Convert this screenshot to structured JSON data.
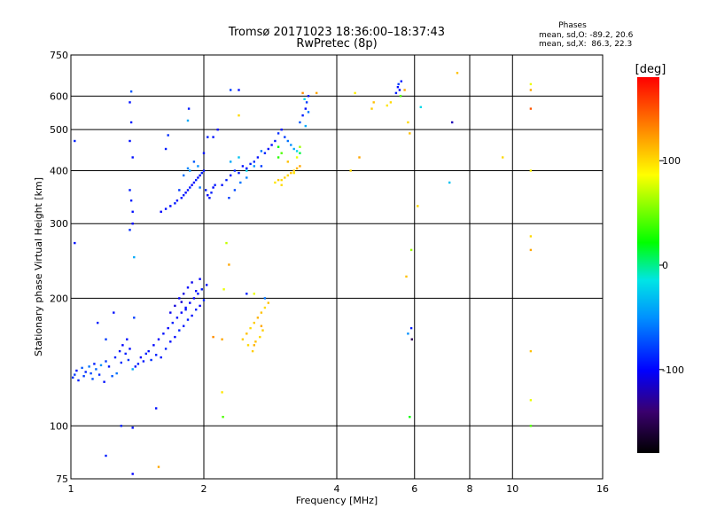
{
  "chart_data": {
    "type": "scatter",
    "title": "Tromsø 20171023 18:36:00–18:37:43",
    "subtitle": "RwPretec (8p)",
    "stats": {
      "heading": "Phases",
      "line_o": "mean, sd,O: -89.2, 20.6",
      "line_x": "mean, sd,X:  86.3, 22.3"
    },
    "xlabel": "Frequency [MHz]",
    "ylabel": "Stationary phase Virtual Height [km]",
    "x_scale": "log",
    "y_scale": "log",
    "xlim": [
      1,
      16
    ],
    "ylim": [
      75,
      750
    ],
    "x_ticks": [
      {
        "v": 1,
        "label": "1"
      },
      {
        "v": 2,
        "label": "2"
      },
      {
        "v": 4,
        "label": "4"
      },
      {
        "v": 6,
        "label": "6"
      },
      {
        "v": 8,
        "label": "8"
      },
      {
        "v": 10,
        "label": "10"
      },
      {
        "v": 16,
        "label": "16"
      }
    ],
    "x_grid": [
      2,
      4,
      6,
      8,
      10
    ],
    "y_ticks": [
      {
        "v": 75,
        "label": "75"
      },
      {
        "v": 100,
        "label": "100"
      },
      {
        "v": 200,
        "label": "200"
      },
      {
        "v": 300,
        "label": "300"
      },
      {
        "v": 400,
        "label": "400"
      },
      {
        "v": 500,
        "label": "500"
      },
      {
        "v": 600,
        "label": "600"
      },
      {
        "v": 750,
        "label": "750"
      }
    ],
    "y_grid": [
      100,
      200,
      300,
      400,
      500,
      600
    ],
    "grid": true,
    "colorbar": {
      "label": "[deg]",
      "range": [
        -180,
        180
      ],
      "ticks": [
        {
          "v": 100,
          "label": "100"
        },
        {
          "v": 0,
          "label": "0"
        },
        {
          "v": -100,
          "label": "-100"
        }
      ]
    },
    "points": [
      [
        1.01,
        130,
        -85
      ],
      [
        1.02,
        132,
        -80
      ],
      [
        1.03,
        135,
        -95
      ],
      [
        1.04,
        128,
        -90
      ],
      [
        1.06,
        137,
        -70
      ],
      [
        1.07,
        131,
        -78
      ],
      [
        1.08,
        134,
        -88
      ],
      [
        1.1,
        138,
        -60
      ],
      [
        1.11,
        133,
        -75
      ],
      [
        1.12,
        129,
        -72
      ],
      [
        1.13,
        140,
        -90
      ],
      [
        1.14,
        136,
        -65
      ],
      [
        1.16,
        132,
        -85
      ],
      [
        1.17,
        139,
        -50
      ],
      [
        1.19,
        127,
        -95
      ],
      [
        1.2,
        142,
        -80
      ],
      [
        1.22,
        138,
        -92
      ],
      [
        1.24,
        131,
        -70
      ],
      [
        1.26,
        145,
        -88
      ],
      [
        1.27,
        133,
        -60
      ],
      [
        1.29,
        150,
        -95
      ],
      [
        1.3,
        141,
        -85
      ],
      [
        1.31,
        155,
        -100
      ],
      [
        1.33,
        148,
        -90
      ],
      [
        1.34,
        160,
        -95
      ],
      [
        1.35,
        143,
        -82
      ],
      [
        1.36,
        152,
        -98
      ],
      [
        1.38,
        136,
        -40
      ],
      [
        1.4,
        138,
        -95
      ],
      [
        1.42,
        140,
        -90
      ],
      [
        1.44,
        145,
        -100
      ],
      [
        1.46,
        142,
        -92
      ],
      [
        1.48,
        148,
        -88
      ],
      [
        1.5,
        150,
        -95
      ],
      [
        1.52,
        143,
        -85
      ],
      [
        1.54,
        155,
        -98
      ],
      [
        1.56,
        147,
        -90
      ],
      [
        1.58,
        160,
        -100
      ],
      [
        1.6,
        145,
        -92
      ],
      [
        1.62,
        165,
        -95
      ],
      [
        1.64,
        152,
        -88
      ],
      [
        1.66,
        170,
        -100
      ],
      [
        1.68,
        158,
        -95
      ],
      [
        1.7,
        175,
        -90
      ],
      [
        1.72,
        162,
        -98
      ],
      [
        1.74,
        180,
        -95
      ],
      [
        1.76,
        168,
        -88
      ],
      [
        1.78,
        185,
        -100
      ],
      [
        1.8,
        172,
        -92
      ],
      [
        1.82,
        190,
        -95
      ],
      [
        1.84,
        178,
        -90
      ],
      [
        1.86,
        195,
        -100
      ],
      [
        1.88,
        182,
        -95
      ],
      [
        1.9,
        200,
        -98
      ],
      [
        1.92,
        188,
        -88
      ],
      [
        1.94,
        205,
        -95
      ],
      [
        1.96,
        192,
        -100
      ],
      [
        1.98,
        210,
        -92
      ],
      [
        2.0,
        198,
        -90
      ],
      [
        2.03,
        215,
        -95
      ],
      [
        1.68,
        185,
        -105
      ],
      [
        1.72,
        192,
        -110
      ],
      [
        1.76,
        200,
        -100
      ],
      [
        1.8,
        205,
        -108
      ],
      [
        1.84,
        212,
        -98
      ],
      [
        1.88,
        218,
        -105
      ],
      [
        1.92,
        208,
        -95
      ],
      [
        1.96,
        222,
        -100
      ],
      [
        1.78,
        196,
        -112
      ],
      [
        1.82,
        188,
        -94
      ],
      [
        1.15,
        175,
        -90
      ],
      [
        1.2,
        160,
        -80
      ],
      [
        1.25,
        185,
        -95
      ],
      [
        1.37,
        340,
        -90
      ],
      [
        1.38,
        320,
        -95
      ],
      [
        1.38,
        300,
        -100
      ],
      [
        1.36,
        290,
        -85
      ],
      [
        1.39,
        250,
        -40
      ],
      [
        1.39,
        180,
        -80
      ],
      [
        1.37,
        615,
        -70
      ],
      [
        1.36,
        580,
        -95
      ],
      [
        1.37,
        520,
        -90
      ],
      [
        1.36,
        470,
        -95
      ],
      [
        1.38,
        430,
        -95
      ],
      [
        1.36,
        360,
        -90
      ],
      [
        1.38,
        99,
        -95
      ],
      [
        1.38,
        77,
        -100
      ],
      [
        1.3,
        100,
        -90
      ],
      [
        1.2,
        85,
        -90
      ],
      [
        1.58,
        80,
        120
      ],
      [
        1.56,
        110,
        -95
      ],
      [
        1.02,
        470,
        -90
      ],
      [
        1.02,
        270,
        -95
      ],
      [
        1.6,
        320,
        -100
      ],
      [
        1.64,
        325,
        -95
      ],
      [
        1.68,
        330,
        -98
      ],
      [
        1.72,
        335,
        -92
      ],
      [
        1.74,
        340,
        -100
      ],
      [
        1.78,
        345,
        -95
      ],
      [
        1.8,
        350,
        -90
      ],
      [
        1.82,
        355,
        -100
      ],
      [
        1.84,
        360,
        -95
      ],
      [
        1.86,
        365,
        -92
      ],
      [
        1.88,
        370,
        -100
      ],
      [
        1.9,
        375,
        -95
      ],
      [
        1.92,
        380,
        -90
      ],
      [
        1.94,
        385,
        -98
      ],
      [
        1.96,
        390,
        -95
      ],
      [
        1.98,
        395,
        -88
      ],
      [
        2.0,
        400,
        -95
      ],
      [
        2.02,
        360,
        -92
      ],
      [
        2.04,
        350,
        -100
      ],
      [
        2.06,
        345,
        -95
      ],
      [
        2.08,
        355,
        -90
      ],
      [
        2.1,
        365,
        -98
      ],
      [
        2.12,
        370,
        -92
      ],
      [
        1.76,
        360,
        -80
      ],
      [
        1.8,
        390,
        -60
      ],
      [
        1.84,
        405,
        -55
      ],
      [
        1.9,
        420,
        -70
      ],
      [
        1.94,
        410,
        -50
      ],
      [
        2.0,
        440,
        -95
      ],
      [
        2.04,
        480,
        -90
      ],
      [
        1.64,
        450,
        -90
      ],
      [
        1.66,
        485,
        -85
      ],
      [
        1.86,
        400,
        -45
      ],
      [
        1.96,
        365,
        -60
      ],
      [
        2.2,
        370,
        -95
      ],
      [
        2.25,
        380,
        -90
      ],
      [
        2.3,
        390,
        -95
      ],
      [
        2.35,
        400,
        -88
      ],
      [
        2.4,
        395,
        -92
      ],
      [
        2.45,
        410,
        -95
      ],
      [
        2.5,
        405,
        -100
      ],
      [
        2.55,
        415,
        -90
      ],
      [
        2.6,
        420,
        -85
      ],
      [
        2.65,
        430,
        -95
      ],
      [
        2.7,
        410,
        -80
      ],
      [
        2.75,
        440,
        -90
      ],
      [
        2.8,
        450,
        -95
      ],
      [
        2.3,
        420,
        -40
      ],
      [
        2.4,
        430,
        -30
      ],
      [
        2.5,
        400,
        -20
      ],
      [
        2.6,
        410,
        -50
      ],
      [
        2.7,
        445,
        -60
      ],
      [
        2.85,
        460,
        -95
      ],
      [
        2.9,
        470,
        -90
      ],
      [
        2.95,
        490,
        -85
      ],
      [
        3.0,
        500,
        -95
      ],
      [
        3.05,
        480,
        -80
      ],
      [
        3.1,
        470,
        -60
      ],
      [
        3.15,
        460,
        -50
      ],
      [
        3.2,
        450,
        -40
      ],
      [
        3.25,
        445,
        -20
      ],
      [
        3.3,
        440,
        10
      ],
      [
        2.95,
        430,
        30
      ],
      [
        3.0,
        440,
        40
      ],
      [
        2.95,
        455,
        20
      ],
      [
        2.9,
        375,
        95
      ],
      [
        3.0,
        380,
        100
      ],
      [
        3.05,
        385,
        105
      ],
      [
        3.1,
        390,
        100
      ],
      [
        3.15,
        395,
        110
      ],
      [
        3.2,
        400,
        105
      ],
      [
        3.25,
        405,
        115
      ],
      [
        3.3,
        410,
        120
      ],
      [
        3.1,
        420,
        110
      ],
      [
        3.2,
        395,
        95
      ],
      [
        3.0,
        370,
        100
      ],
      [
        2.95,
        380,
        105
      ],
      [
        3.3,
        520,
        -70
      ],
      [
        3.35,
        540,
        -90
      ],
      [
        3.4,
        560,
        -95
      ],
      [
        3.42,
        580,
        -80
      ],
      [
        3.45,
        600,
        -95
      ],
      [
        3.45,
        550,
        -60
      ],
      [
        3.4,
        510,
        -40
      ],
      [
        3.35,
        610,
        130
      ],
      [
        3.38,
        590,
        -20
      ],
      [
        3.25,
        430,
        80
      ],
      [
        3.3,
        455,
        60
      ],
      [
        2.28,
        345,
        -80
      ],
      [
        2.35,
        360,
        -75
      ],
      [
        2.42,
        375,
        -60
      ],
      [
        2.5,
        385,
        -55
      ],
      [
        2.1,
        480,
        -95
      ],
      [
        2.3,
        620,
        -80
      ],
      [
        2.4,
        620,
        -95
      ],
      [
        1.84,
        525,
        -40
      ],
      [
        1.85,
        560,
        -90
      ],
      [
        2.15,
        500,
        -100
      ],
      [
        2.45,
        160,
        105
      ],
      [
        2.5,
        165,
        110
      ],
      [
        2.55,
        170,
        100
      ],
      [
        2.6,
        175,
        105
      ],
      [
        2.65,
        180,
        115
      ],
      [
        2.7,
        185,
        110
      ],
      [
        2.52,
        155,
        100
      ],
      [
        2.58,
        150,
        105
      ],
      [
        2.62,
        158,
        110
      ],
      [
        2.7,
        172,
        120
      ],
      [
        2.75,
        190,
        100
      ],
      [
        2.8,
        195,
        110
      ],
      [
        2.72,
        168,
        105
      ],
      [
        2.68,
        162,
        100
      ],
      [
        2.6,
        155,
        115
      ],
      [
        2.1,
        162,
        130
      ],
      [
        2.2,
        160,
        120
      ],
      [
        2.22,
        210,
        80
      ],
      [
        2.25,
        270,
        70
      ],
      [
        2.28,
        240,
        120
      ],
      [
        2.2,
        120,
        95
      ],
      [
        2.21,
        105,
        40
      ],
      [
        2.5,
        205,
        -90
      ],
      [
        2.6,
        205,
        80
      ],
      [
        2.75,
        200,
        -60
      ],
      [
        4.3,
        400,
        100
      ],
      [
        4.5,
        430,
        120
      ],
      [
        4.8,
        560,
        105
      ],
      [
        4.85,
        580,
        110
      ],
      [
        5.2,
        570,
        95
      ],
      [
        5.3,
        580,
        100
      ],
      [
        5.45,
        610,
        -90
      ],
      [
        5.5,
        630,
        -95
      ],
      [
        5.52,
        640,
        -80
      ],
      [
        5.55,
        620,
        -100
      ],
      [
        5.58,
        600,
        40
      ],
      [
        5.6,
        650,
        -90
      ],
      [
        5.7,
        620,
        120
      ],
      [
        5.8,
        520,
        100
      ],
      [
        5.85,
        490,
        110
      ],
      [
        5.9,
        260,
        60
      ],
      [
        5.75,
        225,
        110
      ],
      [
        5.8,
        165,
        -50
      ],
      [
        5.9,
        170,
        -90
      ],
      [
        5.92,
        160,
        -150
      ],
      [
        5.85,
        105,
        20
      ],
      [
        6.1,
        330,
        100
      ],
      [
        6.2,
        565,
        -20
      ],
      [
        7.2,
        375,
        -30
      ],
      [
        7.3,
        520,
        -120
      ],
      [
        7.5,
        680,
        110
      ],
      [
        9.5,
        430,
        100
      ],
      [
        11,
        640,
        80
      ],
      [
        11,
        620,
        120
      ],
      [
        11,
        560,
        150
      ],
      [
        11,
        400,
        90
      ],
      [
        11,
        280,
        100
      ],
      [
        11,
        260,
        120
      ],
      [
        11,
        150,
        110
      ],
      [
        11,
        115,
        80
      ],
      [
        11,
        100,
        40
      ],
      [
        3.6,
        610,
        120
      ],
      [
        4.4,
        610,
        90
      ],
      [
        2.4,
        540,
        100
      ]
    ]
  }
}
